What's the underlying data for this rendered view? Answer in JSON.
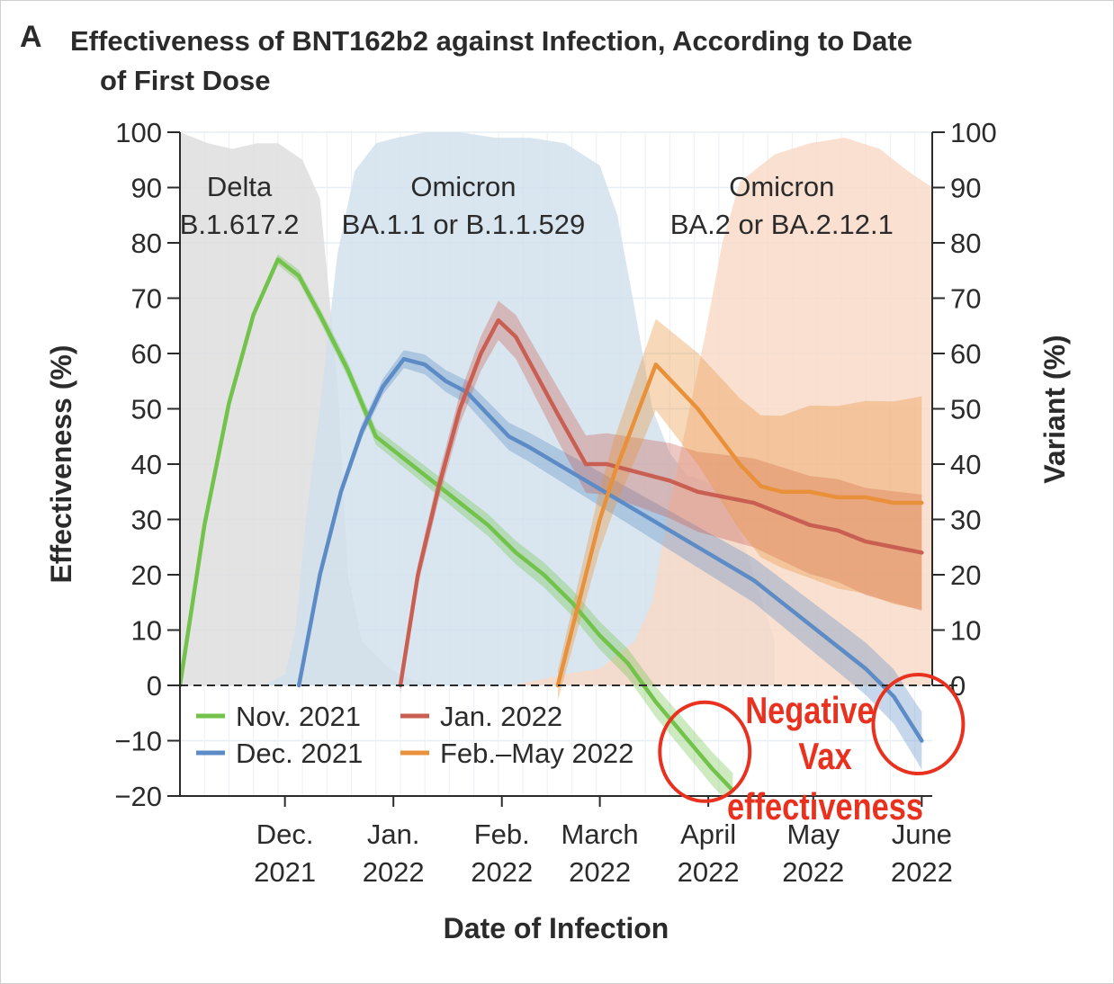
{
  "panel": {
    "letter": "A",
    "title_line1": "Effectiveness of BNT162b2 against Infection, According to Date",
    "title_line2": "of First Dose"
  },
  "chart_data": {
    "type": "line",
    "title": "Effectiveness of BNT162b2 against Infection, According to Date of First Dose",
    "xlabel": "Date of Infection",
    "ylabel": "Effectiveness (%)",
    "y2label": "Variant (%)",
    "ylim": [
      -20,
      100
    ],
    "y2lim": [
      0,
      100
    ],
    "yticks": [
      100,
      90,
      80,
      70,
      60,
      50,
      40,
      30,
      20,
      10,
      0,
      -10,
      -20
    ],
    "y2ticks": [
      100,
      90,
      80,
      70,
      60,
      50,
      40,
      30,
      20,
      10,
      0
    ],
    "xlim": [
      0,
      215
    ],
    "x_unit": "days since Nov. 1, 2021",
    "xticks": [
      {
        "x": 30,
        "line1": "Dec.",
        "line2": "2021"
      },
      {
        "x": 61,
        "line1": "Jan.",
        "line2": "2022"
      },
      {
        "x": 92,
        "line1": "Feb.",
        "line2": "2022"
      },
      {
        "x": 120,
        "line1": "March",
        "line2": "2022"
      },
      {
        "x": 151,
        "line1": "April",
        "line2": "2022"
      },
      {
        "x": 181,
        "line1": "May",
        "line2": "2022"
      },
      {
        "x": 212,
        "line1": "June",
        "line2": "2022"
      }
    ],
    "variant_labels": [
      {
        "x": 17,
        "line1": "Delta",
        "line2": "B.1.617.2"
      },
      {
        "x": 81,
        "line1": "Omicron",
        "line2": "BA.1.1 or B.1.1.529"
      },
      {
        "x": 172,
        "line1": "Omicron",
        "line2": "BA.2 or BA.2.12.1"
      }
    ],
    "variants": [
      {
        "name": "Delta B.1.617.2",
        "color": "#dcdcdc",
        "x": [
          0,
          8,
          15,
          22,
          28,
          35,
          40,
          45,
          48,
          52,
          60,
          66,
          75
        ],
        "y": [
          100,
          98,
          97,
          98,
          98,
          95,
          88,
          55,
          20,
          8,
          3,
          1,
          0
        ]
      },
      {
        "name": "Omicron BA.1.1 or B.1.1.529",
        "color": "#cfe0ec",
        "x": [
          24,
          30,
          33,
          36,
          40,
          45,
          50,
          56,
          62,
          70,
          80,
          90,
          100,
          110,
          120,
          125,
          130,
          135,
          140,
          145,
          150,
          155,
          160,
          165,
          170
        ],
        "y": [
          0,
          2,
          10,
          30,
          50,
          78,
          93,
          98,
          99,
          100,
          100,
          99,
          99,
          98,
          94,
          85,
          68,
          50,
          42,
          38,
          37,
          35,
          28,
          18,
          8
        ]
      },
      {
        "name": "Omicron BA.2 or BA.2.12.1",
        "color": "#f9d8c6",
        "x": [
          80,
          95,
          110,
          120,
          130,
          135,
          140,
          145,
          150,
          155,
          160,
          170,
          180,
          190,
          200,
          208,
          215
        ],
        "y": [
          0,
          0,
          2,
          3,
          8,
          15,
          33,
          48,
          63,
          80,
          91,
          96,
          98,
          99,
          97,
          93,
          90
        ]
      }
    ],
    "series": [
      {
        "name": "Nov. 2021",
        "color": "#72c24c",
        "x": [
          0,
          7,
          14,
          21,
          28,
          34,
          40,
          48,
          56,
          64,
          72,
          80,
          88,
          96,
          104,
          112,
          120,
          128,
          136,
          144,
          152,
          158
        ],
        "y": [
          0,
          29,
          51,
          67,
          77,
          74,
          67,
          57,
          45,
          41,
          37,
          33,
          29,
          24,
          20,
          15,
          9,
          4,
          -3,
          -9,
          -15,
          -19
        ],
        "band": 1.8
      },
      {
        "name": "Dec. 2021",
        "color": "#5c8bc6",
        "x": [
          34,
          40,
          46,
          52,
          58,
          64,
          70,
          76,
          82,
          88,
          94,
          100,
          108,
          116,
          124,
          132,
          140,
          148,
          156,
          164,
          172,
          180,
          188,
          196,
          204,
          210,
          212
        ],
        "y": [
          0,
          20,
          35,
          46,
          54,
          59,
          58,
          55,
          53,
          49,
          45,
          43,
          40,
          37,
          34,
          31,
          28,
          25,
          22,
          19,
          15,
          11,
          7,
          3,
          -2,
          -8,
          -10
        ],
        "band": 3.0
      },
      {
        "name": "Jan. 2022",
        "color": "#c95f52",
        "x": [
          63,
          68,
          74,
          80,
          86,
          91,
          96,
          102,
          108,
          116,
          122,
          128,
          134,
          140,
          148,
          156,
          164,
          172,
          180,
          188,
          196,
          204,
          212
        ],
        "y": [
          0,
          20,
          36,
          50,
          60,
          66,
          63,
          56,
          49,
          40,
          40,
          39,
          38,
          37,
          35,
          34,
          33,
          31,
          29,
          28,
          26,
          25,
          24
        ],
        "band": 6
      },
      {
        "name": "Feb.–May 2022",
        "color": "#e8913a",
        "x": [
          108,
          112,
          116,
          120,
          124,
          130,
          136,
          142,
          148,
          154,
          160,
          166,
          172,
          176,
          180,
          188,
          196,
          204,
          212
        ],
        "y": [
          0,
          10,
          20,
          30,
          38,
          48,
          58,
          54,
          50,
          45,
          40,
          36,
          35,
          35,
          35,
          34,
          34,
          33,
          33
        ],
        "band": 11
      }
    ],
    "legend": {
      "placement": "bottom-left",
      "items": [
        "Nov. 2021",
        "Dec. 2021",
        "Jan. 2022",
        "Feb.–May 2022"
      ]
    },
    "annotations": [
      {
        "text_lines": [
          "Negative",
          "Vax",
          "effectiveness"
        ],
        "color": "#e8321f"
      }
    ],
    "highlight_circles": [
      {
        "x": 150,
        "y": -12,
        "color": "#e8321f"
      },
      {
        "x": 211,
        "y": -7,
        "color": "#e8321f"
      }
    ],
    "gridlines": true,
    "zero_line": "dashed"
  }
}
